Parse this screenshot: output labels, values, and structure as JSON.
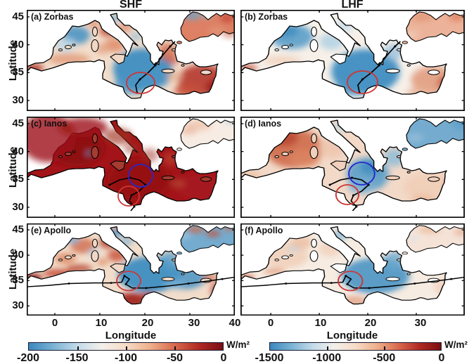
{
  "figure": {
    "column_titles": [
      "SHF",
      "LHF"
    ],
    "y_axis_label": "Latitude",
    "x_axis_label": "Longitude",
    "y_ticks": [
      "45",
      "40",
      "35",
      "30"
    ],
    "x_ticks_left": [
      "0",
      "10",
      "20",
      "30",
      "40"
    ],
    "x_ticks_right": [
      "0",
      "10",
      "20",
      "30"
    ]
  },
  "panels": [
    {
      "id": "a",
      "label": "(a) Zorbas"
    },
    {
      "id": "b",
      "label": "(b) Zorbas"
    },
    {
      "id": "c",
      "label": "(c) Ianos"
    },
    {
      "id": "d",
      "label": "(d) Ianos"
    },
    {
      "id": "e",
      "label": "(e) Apollo"
    },
    {
      "id": "f",
      "label": "(f) Apollo"
    }
  ],
  "colorbars": {
    "left": {
      "ticks": [
        "-200",
        "-150",
        "-100",
        "-50",
        "0"
      ],
      "units": "W/m²",
      "range": [
        -200,
        0
      ]
    },
    "right": {
      "ticks": [
        "-1500",
        "-1000",
        "-500",
        "0"
      ],
      "units": "W/m²",
      "range": [
        -1500,
        0
      ]
    }
  },
  "colors": {
    "colormap_stops": [
      "#3c87be",
      "#7ab3d4",
      "#c3dbe9",
      "#f3f0ea",
      "#f6dcc8",
      "#eeb08c",
      "#d96a4e",
      "#b02a24",
      "#7a0d12"
    ],
    "colormap_min_color": "#3c87be",
    "colormap_mid_color": "#f3f0ea",
    "colormap_max_color": "#7a0d12",
    "circle_red": "#cf3535",
    "circle_blue": "#2727cc",
    "coastline": "#000000",
    "text": "#111111"
  },
  "chart_data": {
    "type": "heatmap",
    "layout": "3 rows x 2 columns of Mediterranean Sea maps",
    "columns": [
      "SHF",
      "LHF"
    ],
    "rows": [
      "Zorbas",
      "Ianos",
      "Apollo"
    ],
    "x": {
      "label": "Longitude",
      "range": [
        -6,
        40
      ],
      "ticks_left_column": [
        0,
        10,
        20,
        30,
        40
      ],
      "ticks_right_column": [
        0,
        10,
        20,
        30
      ]
    },
    "y": {
      "label": "Latitude",
      "range": [
        28,
        46
      ],
      "ticks": [
        45,
        40,
        35,
        30
      ]
    },
    "colorbars": [
      {
        "applies_to": "SHF (left column)",
        "range": [
          -200,
          0
        ],
        "ticks": [
          -200,
          -150,
          -100,
          -50,
          0
        ],
        "units": "W/m²",
        "scheme": "blue(-200) through white to dark red(0)"
      },
      {
        "applies_to": "LHF (right column)",
        "range": [
          -1500,
          0
        ],
        "ticks": [
          -1500,
          -1000,
          -500,
          0
        ],
        "units": "W/m²",
        "scheme": "blue(-1500) through white to dark red(0)"
      }
    ],
    "panels": [
      {
        "id": "(a)",
        "storm": "Zorbas",
        "variable": "SHF",
        "summary": "Ionian Sea strongly negative (blue); Levantine Sea, Aegean and Black Sea near zero (red); storm track and red circle near 19E, 34N.",
        "annotations": [
          {
            "shape": "circle",
            "color": "red",
            "lon_approx": 19,
            "lat_approx": 34
          }
        ]
      },
      {
        "id": "(b)",
        "storm": "Zorbas",
        "variable": "LHF",
        "summary": "Western Mediterranean and Ionian negative (blue); Levantine and Black Sea weakly negative (orange-red); track and red circle near 19E, 34N.",
        "annotations": [
          {
            "shape": "circle",
            "color": "red",
            "lon_approx": 19,
            "lat_approx": 34
          }
        ]
      },
      {
        "id": "(c)",
        "storm": "Ianos",
        "variable": "SHF",
        "summary": "Nearly the whole Mediterranean saturated dark red (values near 0 of the -200..0 scale); Black Sea pale; looping Ianos track with blue circle near 19E, 36.5N and red circle near 16.5E, 33.5N.",
        "annotations": [
          {
            "shape": "circle",
            "color": "blue",
            "lon_approx": 19,
            "lat_approx": 36.5
          },
          {
            "shape": "circle",
            "color": "red",
            "lon_approx": 16.5,
            "lat_approx": 33.5
          }
        ]
      },
      {
        "id": "(d)",
        "storm": "Ianos",
        "variable": "LHF",
        "summary": "Western Mediterranean red (near zero); Ionian, Aegean and Black Sea negative (blue); same blue and red circles on the Ianos track.",
        "annotations": [
          {
            "shape": "circle",
            "color": "blue",
            "lon_approx": 19,
            "lat_approx": 36.5
          },
          {
            "shape": "circle",
            "color": "red",
            "lon_approx": 16.5,
            "lat_approx": 33.5
          }
        ]
      },
      {
        "id": "(e)",
        "storm": "Apollo",
        "variable": "SHF",
        "summary": "Patchy red western Mediterranean; central Mediterranean and Ionian strongly negative (blue); dark red Gulf of Sirte; Black Sea blue with red filaments; long west-east Apollo track with red circle near 16E, 35N.",
        "annotations": [
          {
            "shape": "circle",
            "color": "red",
            "lon_approx": 16,
            "lat_approx": 35
          }
        ]
      },
      {
        "id": "(f)",
        "storm": "Apollo",
        "variable": "LHF",
        "summary": "Mostly weak (pale) anomalies; central Mediterranean, Adriatic and Aegean negative (blue); red circle near 16E, 35N on the Apollo track.",
        "annotations": [
          {
            "shape": "circle",
            "color": "red",
            "lon_approx": 16,
            "lat_approx": 35
          }
        ]
      }
    ]
  }
}
